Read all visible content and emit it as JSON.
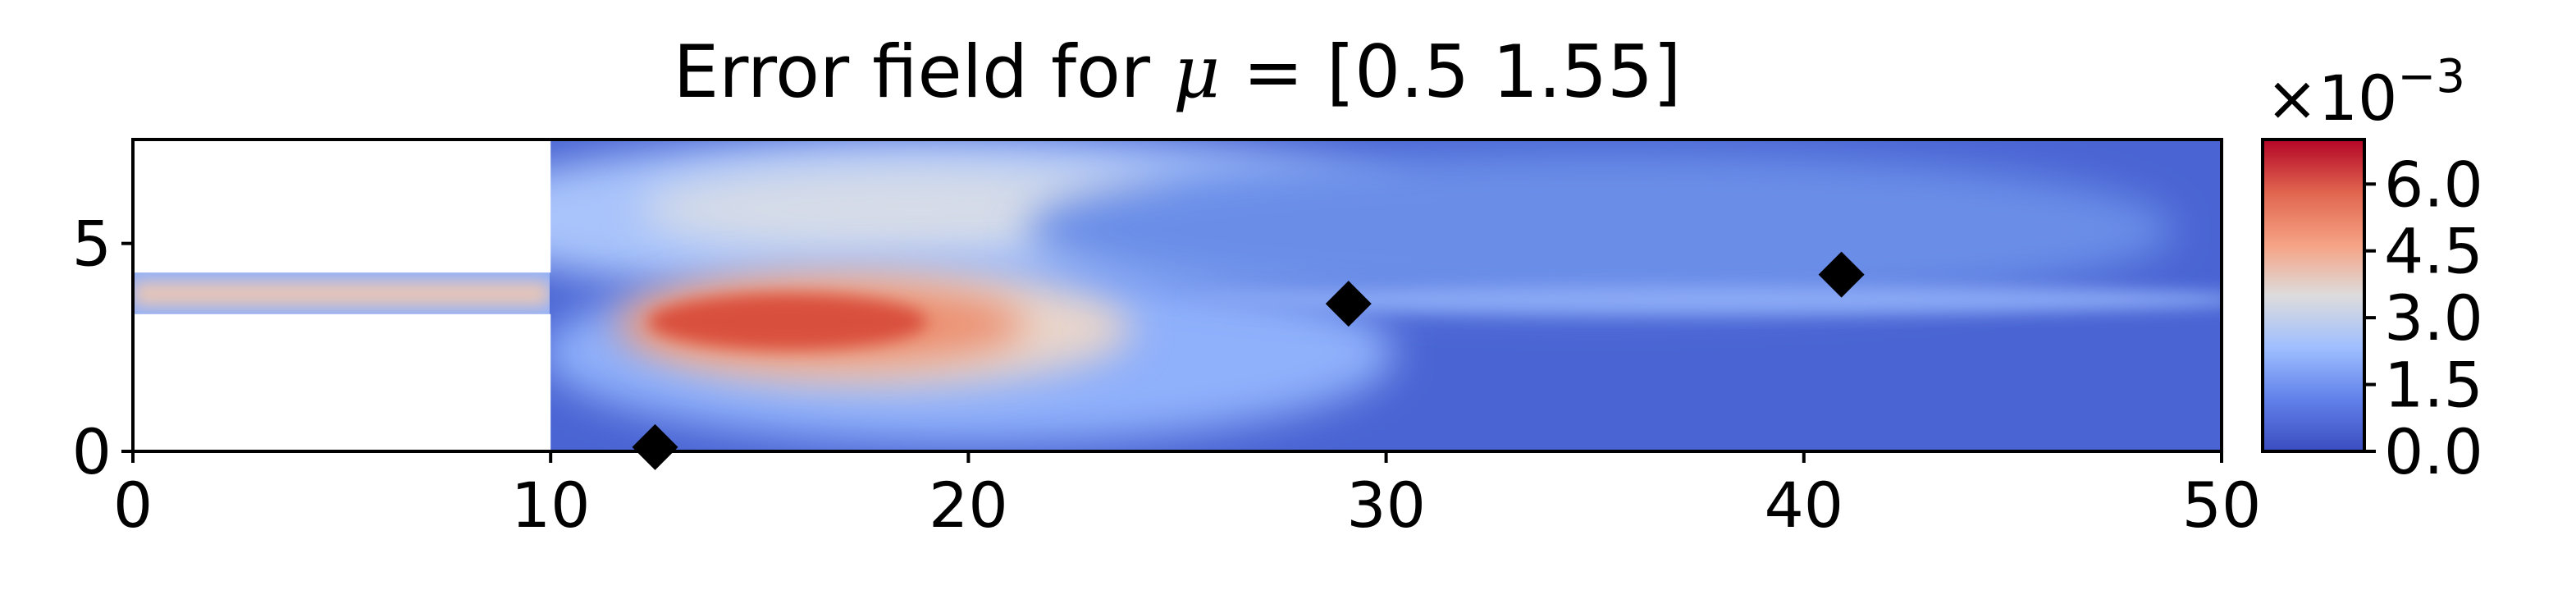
{
  "chart_data": {
    "type": "heatmap",
    "title_prefix": "Error field for ",
    "title_symbol": "μ",
    "title_suffix": " = [0.5  1.55]",
    "xlim": [
      0,
      50
    ],
    "ylim": [
      0,
      7.5
    ],
    "x_ticks": [
      "0",
      "10",
      "20",
      "30",
      "40",
      "50"
    ],
    "y_ticks": [
      "0",
      "5"
    ],
    "colorbar": {
      "exponent_label_base": "×10",
      "exponent_label_power": "−3",
      "ticks": [
        "0.0",
        "1.5",
        "3.0",
        "4.5",
        "6.0"
      ],
      "tick_values": [
        0.0,
        1.5,
        3.0,
        4.5,
        6.0
      ],
      "range": [
        0.0,
        7.0
      ],
      "colormap": "coolwarm",
      "colors": [
        "#3b4cc0",
        "#7396f5",
        "#b0cbfc",
        "#dddcdc",
        "#f6bfa6",
        "#ea7b60",
        "#b40426"
      ]
    },
    "domain": {
      "inlet_channel": {
        "x": [
          0,
          10
        ],
        "y": [
          3.3,
          4.3
        ]
      },
      "main_chamber": {
        "x": [
          10,
          50
        ],
        "y": [
          0,
          7.5
        ]
      }
    },
    "markers": [
      {
        "x": 12.5,
        "y": 0.1
      },
      {
        "x": 29.1,
        "y": 3.55
      },
      {
        "x": 40.9,
        "y": 4.25
      }
    ],
    "marker_color": "#000000"
  }
}
